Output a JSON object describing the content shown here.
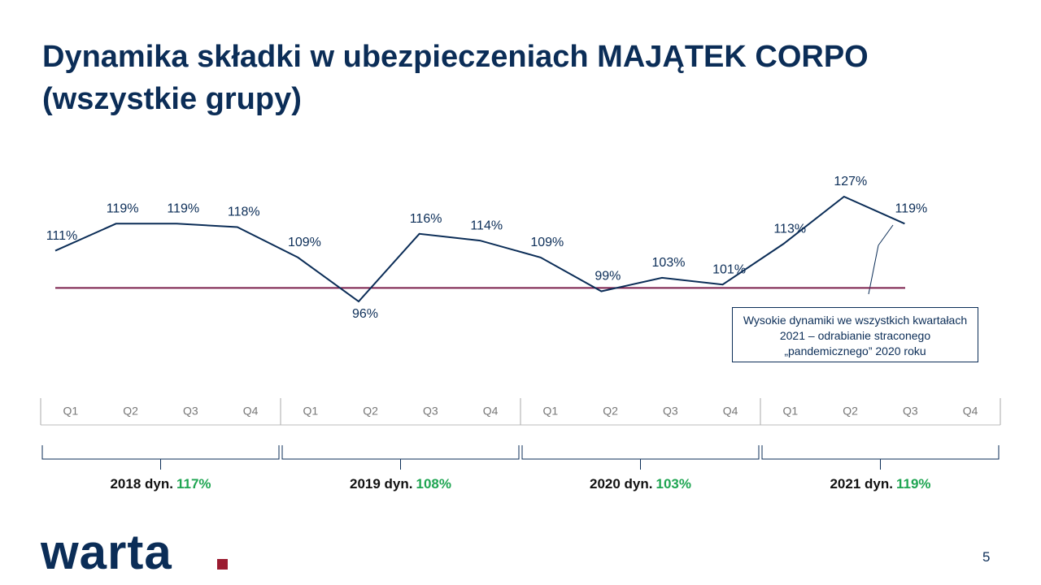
{
  "chart_data": {
    "type": "line",
    "title": "Dynamika składki w ubezpieczeniach MAJĄTEK CORPO (wszystkie grupy)",
    "categories": [
      "Q1",
      "Q2",
      "Q3",
      "Q4",
      "Q1",
      "Q2",
      "Q3",
      "Q4",
      "Q1",
      "Q2",
      "Q3",
      "Q4",
      "Q1",
      "Q2",
      "Q3",
      "Q4"
    ],
    "series": [
      {
        "color": "#0b2d57",
        "values": [
          111,
          119,
          119,
          118,
          109,
          96,
          116,
          114,
          109,
          99,
          103,
          101,
          113,
          127,
          119,
          null
        ],
        "value_labels": [
          "111%",
          "119%",
          "119%",
          "118%",
          "109%",
          "96%",
          "116%",
          "114%",
          "109%",
          "99%",
          "103%",
          "101%",
          "113%",
          "127%",
          "119%",
          null
        ]
      }
    ],
    "reference_line": {
      "value": 100,
      "color": "#7a1e4b"
    },
    "groups": [
      {
        "label": "2018 dyn.",
        "value": 117,
        "value_label": "117%"
      },
      {
        "label": "2019 dyn.",
        "value": 108,
        "value_label": "108%"
      },
      {
        "label": "2020 dyn.",
        "value": 103,
        "value_label": "103%"
      },
      {
        "label": "2021 dyn.",
        "value": 119,
        "value_label": "119%"
      }
    ],
    "group_value_color": "#1fa552",
    "annotation": "Wysokie dynamiki we wszystkich kwartałach 2021 – odrabianie straconego „pandemicznego” 2020 roku"
  },
  "logo": "warta",
  "page_number": "5"
}
